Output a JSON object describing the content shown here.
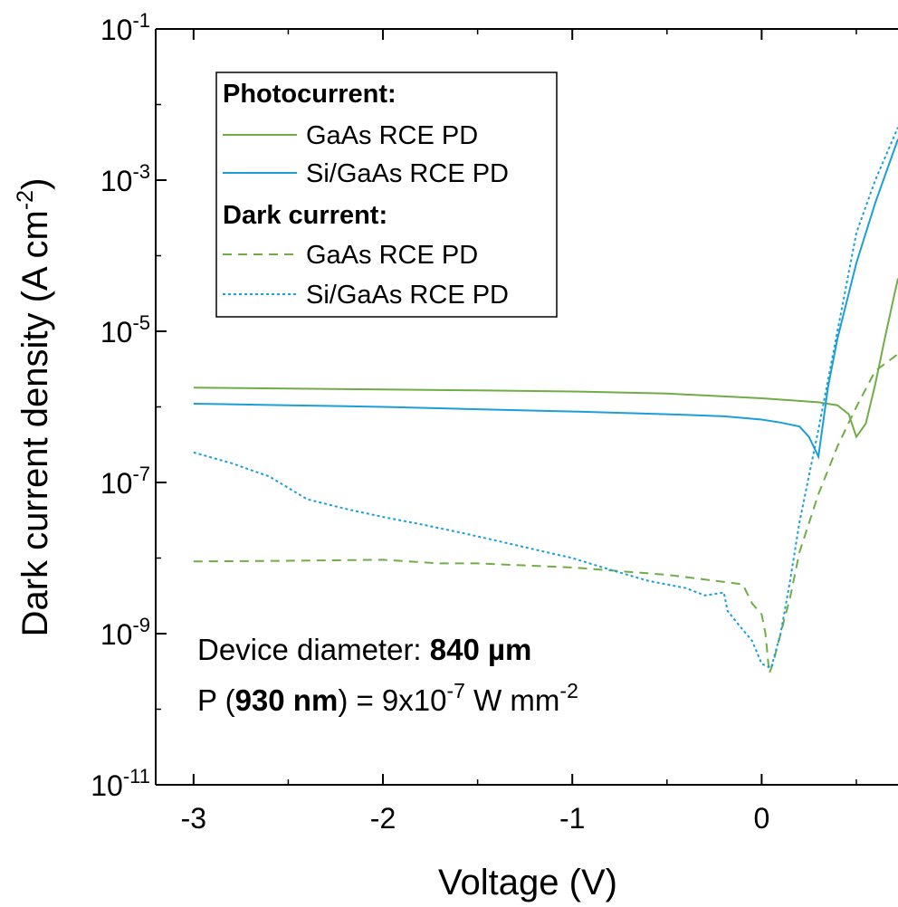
{
  "chart_data": {
    "type": "line",
    "title": "",
    "xlabel": "Voltage (V)",
    "ylabel_main": "Dark current density (A cm",
    "ylabel_sup": "-2",
    "ylabel_close": ")",
    "xlim": [
      -3.2,
      0.72
    ],
    "ylim_log10": [
      -11,
      -1
    ],
    "yscale": "log",
    "grid": false,
    "x_ticks": [
      -3,
      -2,
      -1,
      0
    ],
    "x_tick_labels": [
      "-3",
      "-2",
      "-1",
      "0"
    ],
    "y_ticks_log10": [
      -11,
      -9,
      -7,
      -5,
      -3,
      -1
    ],
    "y_tick_labels": [
      {
        "base": "10",
        "exp": "-11"
      },
      {
        "base": "10",
        "exp": "-9"
      },
      {
        "base": "10",
        "exp": "-7"
      },
      {
        "base": "10",
        "exp": "-5"
      },
      {
        "base": "10",
        "exp": "-3"
      },
      {
        "base": "10",
        "exp": "-1"
      }
    ],
    "legend": {
      "position": "top-left",
      "groups": [
        {
          "heading": "Photocurrent:",
          "entries": [
            "GaAs RCE PD",
            "Si/GaAs RCE PD"
          ]
        },
        {
          "heading": "Dark current:",
          "entries": [
            "GaAs RCE PD",
            "Si/GaAs RCE PD"
          ]
        }
      ]
    },
    "annotation": {
      "line1_prefix": "Device diameter: ",
      "line1_value": "840 µm",
      "line2_p": "P (",
      "line2_wavelength": "930 nm",
      "line2_close": ")",
      "line2_eq": " = 9x10",
      "line2_exp1": "-7",
      "line2_unit": " W mm",
      "line2_exp2": "-2"
    },
    "series": [
      {
        "group": "Photocurrent",
        "name": "GaAs RCE PD",
        "color": "#70ad47",
        "style": "solid",
        "x": [
          -3.0,
          -2.5,
          -2.0,
          -1.5,
          -1.0,
          -0.5,
          0.0,
          0.2,
          0.3,
          0.4,
          0.46,
          0.5,
          0.55,
          0.6,
          0.65,
          0.7,
          0.72
        ],
        "y": [
          1.8e-06,
          1.75e-06,
          1.7e-06,
          1.65e-06,
          1.6e-06,
          1.5e-06,
          1.3e-06,
          1.2e-06,
          1.15e-06,
          1.05e-06,
          8e-07,
          4e-07,
          6e-07,
          2e-06,
          8e-06,
          3e-05,
          5e-05
        ]
      },
      {
        "group": "Photocurrent",
        "name": "Si/GaAs RCE PD",
        "color": "#1b9fd8",
        "style": "solid",
        "x": [
          -3.0,
          -2.5,
          -2.0,
          -1.5,
          -1.0,
          -0.5,
          -0.2,
          0.0,
          0.1,
          0.2,
          0.25,
          0.3,
          0.35,
          0.4,
          0.5,
          0.6,
          0.72
        ],
        "y": [
          1.1e-06,
          1.05e-06,
          1e-06,
          9.3e-07,
          8.7e-07,
          8e-07,
          7.5e-07,
          6.8e-07,
          6.2e-07,
          5.5e-07,
          4e-07,
          2.2e-07,
          1.8e-06,
          8e-06,
          8e-05,
          0.0005,
          0.0035
        ]
      },
      {
        "group": "Dark current",
        "name": "GaAs RCE PD",
        "color": "#70ad47",
        "style": "dashed",
        "x": [
          -3.0,
          -2.5,
          -2.0,
          -1.7,
          -1.5,
          -1.0,
          -0.5,
          -0.1,
          -0.05,
          0.0,
          0.02,
          0.04,
          0.06,
          0.1,
          0.15,
          0.2,
          0.3,
          0.4,
          0.5,
          0.6,
          0.72
        ],
        "y": [
          9e-09,
          9.2e-09,
          9.5e-09,
          8.5e-09,
          8.5e-09,
          7.5e-09,
          6e-09,
          4.5e-09,
          2.5e-09,
          1.8e-09,
          1e-09,
          3e-10,
          4e-10,
          1e-09,
          3e-09,
          1.2e-08,
          7e-08,
          3e-07,
          1e-06,
          3e-06,
          5e-06
        ]
      },
      {
        "group": "Dark current",
        "name": "Si/GaAs RCE PD",
        "color": "#1b9fd8",
        "style": "dotted",
        "x": [
          -3.0,
          -2.8,
          -2.6,
          -2.4,
          -2.2,
          -2.0,
          -1.8,
          -1.6,
          -1.4,
          -1.2,
          -1.0,
          -0.8,
          -0.6,
          -0.4,
          -0.3,
          -0.2,
          -0.18,
          -0.12,
          -0.05,
          0.0,
          0.05,
          0.1,
          0.15,
          0.2,
          0.3,
          0.4,
          0.5,
          0.6,
          0.72
        ],
        "y": [
          2.5e-07,
          1.8e-07,
          1.2e-07,
          6e-08,
          4.5e-08,
          3.5e-08,
          2.8e-08,
          2.2e-08,
          1.7e-08,
          1.3e-08,
          1e-08,
          7e-09,
          5e-09,
          4e-09,
          3.2e-09,
          3.5e-09,
          2e-09,
          1.3e-09,
          8e-10,
          4e-10,
          3.5e-10,
          1e-09,
          5e-09,
          3e-08,
          5e-07,
          1e-05,
          0.0002,
          0.001,
          0.005
        ]
      }
    ]
  }
}
